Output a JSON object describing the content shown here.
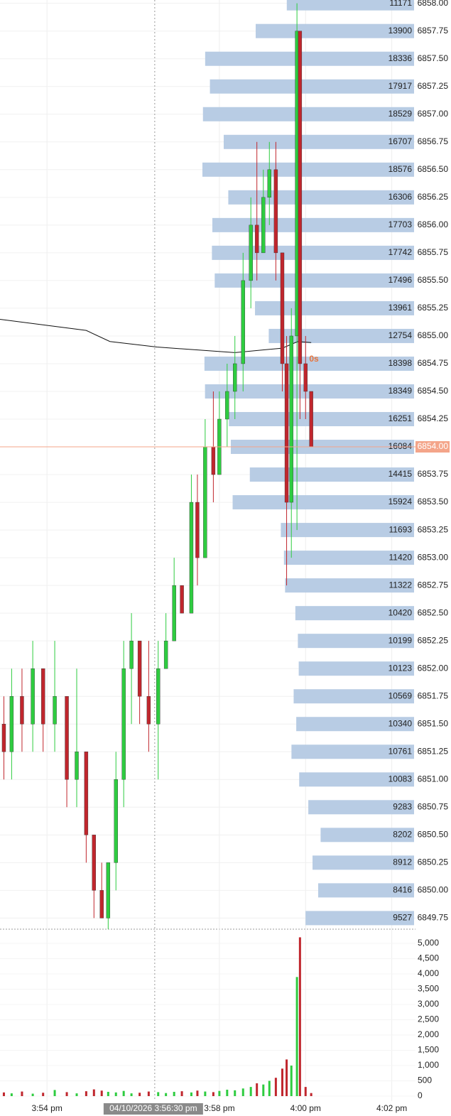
{
  "chart_data": {
    "type": "candlestick",
    "xlim": [
      952.91,
      962.55
    ],
    "ylim": [
      6849.65,
      6858.03
    ],
    "xticks": [
      {
        "value": 954,
        "label": "3:54 pm"
      },
      {
        "value": 958,
        "label": "3:58 pm"
      },
      {
        "value": 960,
        "label": "4:00 pm"
      },
      {
        "value": 962,
        "label": "4:02 pm"
      }
    ],
    "yticks": [
      {
        "value": 6858.0,
        "label": "6858.00"
      },
      {
        "value": 6857.75,
        "label": "6857.75"
      },
      {
        "value": 6857.5,
        "label": "6857.50"
      },
      {
        "value": 6857.25,
        "label": "6857.25"
      },
      {
        "value": 6857.0,
        "label": "6857.00"
      },
      {
        "value": 6856.75,
        "label": "6856.75"
      },
      {
        "value": 6856.5,
        "label": "6856.50"
      },
      {
        "value": 6856.25,
        "label": "6856.25"
      },
      {
        "value": 6856.0,
        "label": "6856.00"
      },
      {
        "value": 6855.75,
        "label": "6855.75"
      },
      {
        "value": 6855.5,
        "label": "6855.50"
      },
      {
        "value": 6855.25,
        "label": "6855.25"
      },
      {
        "value": 6855.0,
        "label": "6855.00"
      },
      {
        "value": 6854.75,
        "label": "6854.75"
      },
      {
        "value": 6854.5,
        "label": "6854.50"
      },
      {
        "value": 6854.25,
        "label": "6854.25"
      },
      {
        "value": 6854.0,
        "label": "6854.00"
      },
      {
        "value": 6853.75,
        "label": "6853.75"
      },
      {
        "value": 6853.5,
        "label": "6853.50"
      },
      {
        "value": 6853.25,
        "label": "6853.25"
      },
      {
        "value": 6853.0,
        "label": "6853.00"
      },
      {
        "value": 6852.75,
        "label": "6852.75"
      },
      {
        "value": 6852.5,
        "label": "6852.50"
      },
      {
        "value": 6852.25,
        "label": "6852.25"
      },
      {
        "value": 6852.0,
        "label": "6852.00"
      },
      {
        "value": 6851.75,
        "label": "6851.75"
      },
      {
        "value": 6851.5,
        "label": "6851.50"
      },
      {
        "value": 6851.25,
        "label": "6851.25"
      },
      {
        "value": 6851.0,
        "label": "6851.00"
      },
      {
        "value": 6850.75,
        "label": "6850.75"
      },
      {
        "value": 6850.5,
        "label": "6850.50"
      },
      {
        "value": 6850.25,
        "label": "6850.25"
      },
      {
        "value": 6850.0,
        "label": "6850.00"
      },
      {
        "value": 6849.75,
        "label": "6849.75"
      }
    ],
    "x": [
      953.0,
      953.18,
      953.42,
      953.67,
      953.91,
      954.18,
      954.46,
      954.69,
      954.91,
      955.09,
      955.27,
      955.42,
      955.6,
      955.78,
      955.96,
      956.15,
      956.36,
      956.58,
      956.76,
      956.95,
      957.13,
      957.35,
      957.49,
      957.67,
      957.86,
      958.0,
      958.18,
      958.36,
      958.55,
      958.73,
      958.87,
      959.02,
      959.16,
      959.31,
      959.46,
      959.56,
      959.67,
      959.8,
      959.87,
      960.0,
      960.13
    ],
    "open": [
      6851.5,
      6851.25,
      6851.75,
      6851.5,
      6852.0,
      6851.5,
      6851.75,
      6851.0,
      6851.25,
      6850.5,
      6850.0,
      6849.75,
      6850.25,
      6851.0,
      6852.0,
      6852.25,
      6851.75,
      6851.5,
      6852.0,
      6852.25,
      6852.75,
      6852.5,
      6853.5,
      6853.0,
      6854.0,
      6853.75,
      6854.25,
      6854.5,
      6854.75,
      6855.5,
      6856.0,
      6855.75,
      6856.25,
      6856.5,
      6855.75,
      6854.75,
      6853.5,
      6855.0,
      6857.75,
      6854.75,
      6854.5
    ],
    "high": [
      6851.75,
      6852.0,
      6852.0,
      6852.25,
      6852.0,
      6852.25,
      6851.75,
      6852.0,
      6851.25,
      6850.5,
      6850.25,
      6850.25,
      6851.25,
      6852.25,
      6852.5,
      6852.25,
      6852.25,
      6852.25,
      6852.5,
      6853.0,
      6852.75,
      6853.75,
      6853.75,
      6854.25,
      6854.5,
      6854.5,
      6854.75,
      6855.0,
      6855.75,
      6856.25,
      6856.75,
      6856.5,
      6856.75,
      6856.75,
      6855.75,
      6855.0,
      6855.25,
      6858.0,
      6857.75,
      6855.0,
      6854.5
    ],
    "low": [
      6851.0,
      6851.0,
      6851.25,
      6851.25,
      6851.25,
      6851.25,
      6850.75,
      6850.75,
      6850.25,
      6849.75,
      6849.75,
      6849.65,
      6850.0,
      6850.75,
      6851.5,
      6851.5,
      6851.25,
      6851.0,
      6852.0,
      6852.25,
      6852.5,
      6852.5,
      6852.75,
      6853.0,
      6853.5,
      6853.75,
      6854.0,
      6854.25,
      6854.5,
      6855.25,
      6855.5,
      6855.75,
      6856.0,
      6855.5,
      6854.5,
      6852.75,
      6853.0,
      6853.25,
      6854.25,
      6854.25,
      6854.0
    ],
    "close": [
      6851.25,
      6851.75,
      6851.5,
      6852.0,
      6851.5,
      6851.75,
      6851.0,
      6851.25,
      6850.5,
      6850.0,
      6849.75,
      6850.25,
      6851.0,
      6852.0,
      6852.25,
      6851.75,
      6851.5,
      6852.0,
      6852.25,
      6852.75,
      6852.5,
      6853.5,
      6853.0,
      6854.0,
      6853.75,
      6854.25,
      6854.5,
      6854.75,
      6855.5,
      6856.0,
      6855.75,
      6856.25,
      6856.5,
      6855.75,
      6854.75,
      6853.5,
      6855.0,
      6857.75,
      6854.75,
      6854.5,
      6854.0
    ],
    "volume": [
      120,
      90,
      150,
      80,
      110,
      200,
      130,
      90,
      160,
      220,
      180,
      140,
      120,
      170,
      90,
      110,
      150,
      130,
      100,
      140,
      160,
      120,
      180,
      150,
      130,
      170,
      210,
      190,
      250,
      300,
      420,
      380,
      500,
      600,
      900,
      1200,
      1000,
      3900,
      5200,
      300,
      100
    ],
    "up_color": "#2ecc40",
    "down_color": "#c0262d",
    "volume_ylim": [
      0,
      5420
    ],
    "volume_yticks": [
      0,
      500,
      {
        "value": 1000,
        "label": "1,000"
      },
      {
        "value": 1500,
        "label": "1,500"
      },
      {
        "value": 2000,
        "label": "2,000"
      },
      {
        "value": 2500,
        "label": "2,500"
      },
      {
        "value": 3000,
        "label": "3,000"
      },
      {
        "value": 3500,
        "label": "3,500"
      },
      {
        "value": 4000,
        "label": "4,000"
      },
      {
        "value": 4500,
        "label": "4,500"
      },
      {
        "value": 5000,
        "label": "5,000"
      }
    ],
    "profile": {
      "color": "#b8cce4",
      "values": [
        11171,
        13900,
        18336,
        17917,
        18529,
        16707,
        18576,
        16306,
        17703,
        17742,
        17496,
        13961,
        12754,
        18398,
        18349,
        16251,
        16084,
        14415,
        15924,
        11693,
        11420,
        11322,
        10420,
        10199,
        10123,
        10569,
        10340,
        10761,
        10083,
        9283,
        8202,
        8912,
        8416,
        9527
      ]
    },
    "vwap": {
      "color": "#111111",
      "x": [
        952.91,
        954.91,
        955.46,
        956.55,
        958.36,
        959.46,
        959.82,
        960.13
      ],
      "values": [
        6855.15,
        6855.05,
        6854.95,
        6854.9,
        6854.85,
        6854.89,
        6854.95,
        6854.94
      ]
    },
    "last_price": {
      "value": 6854,
      "label": "6854.00",
      "color": "#f4a58a"
    },
    "crosshair": {
      "x": 956.5,
      "label": "04/10/2026 3:56:30 pm"
    },
    "countdown": "0s"
  }
}
